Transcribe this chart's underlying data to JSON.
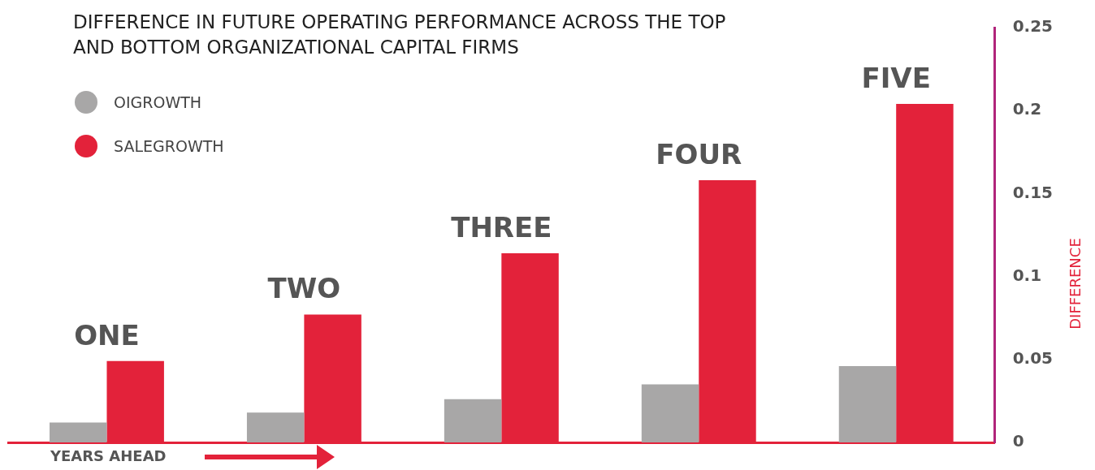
{
  "chart_data": {
    "type": "bar",
    "title": "DIFFERENCE IN FUTURE OPERATING PERFORMANCE ACROSS THE TOP AND BOTTOM ORGANIZATIONAL CAPITAL FIRMS",
    "xlabel": "YEARS AHEAD",
    "ylabel": "DIFFERENCE",
    "categories": [
      "ONE",
      "TWO",
      "THREE",
      "FOUR",
      "FIVE"
    ],
    "series": [
      {
        "name": "OIGROWTH",
        "color": "#a8a7a7",
        "values": [
          0.012,
          0.018,
          0.026,
          0.035,
          0.046
        ]
      },
      {
        "name": "SALEGROWTH",
        "color": "#e3223a",
        "values": [
          0.049,
          0.077,
          0.114,
          0.158,
          0.204
        ]
      }
    ],
    "ylim": [
      0,
      0.25
    ],
    "yticks": [
      0,
      0.05,
      0.1,
      0.15,
      0.2,
      0.25
    ],
    "grid": false,
    "legend": "top left"
  }
}
